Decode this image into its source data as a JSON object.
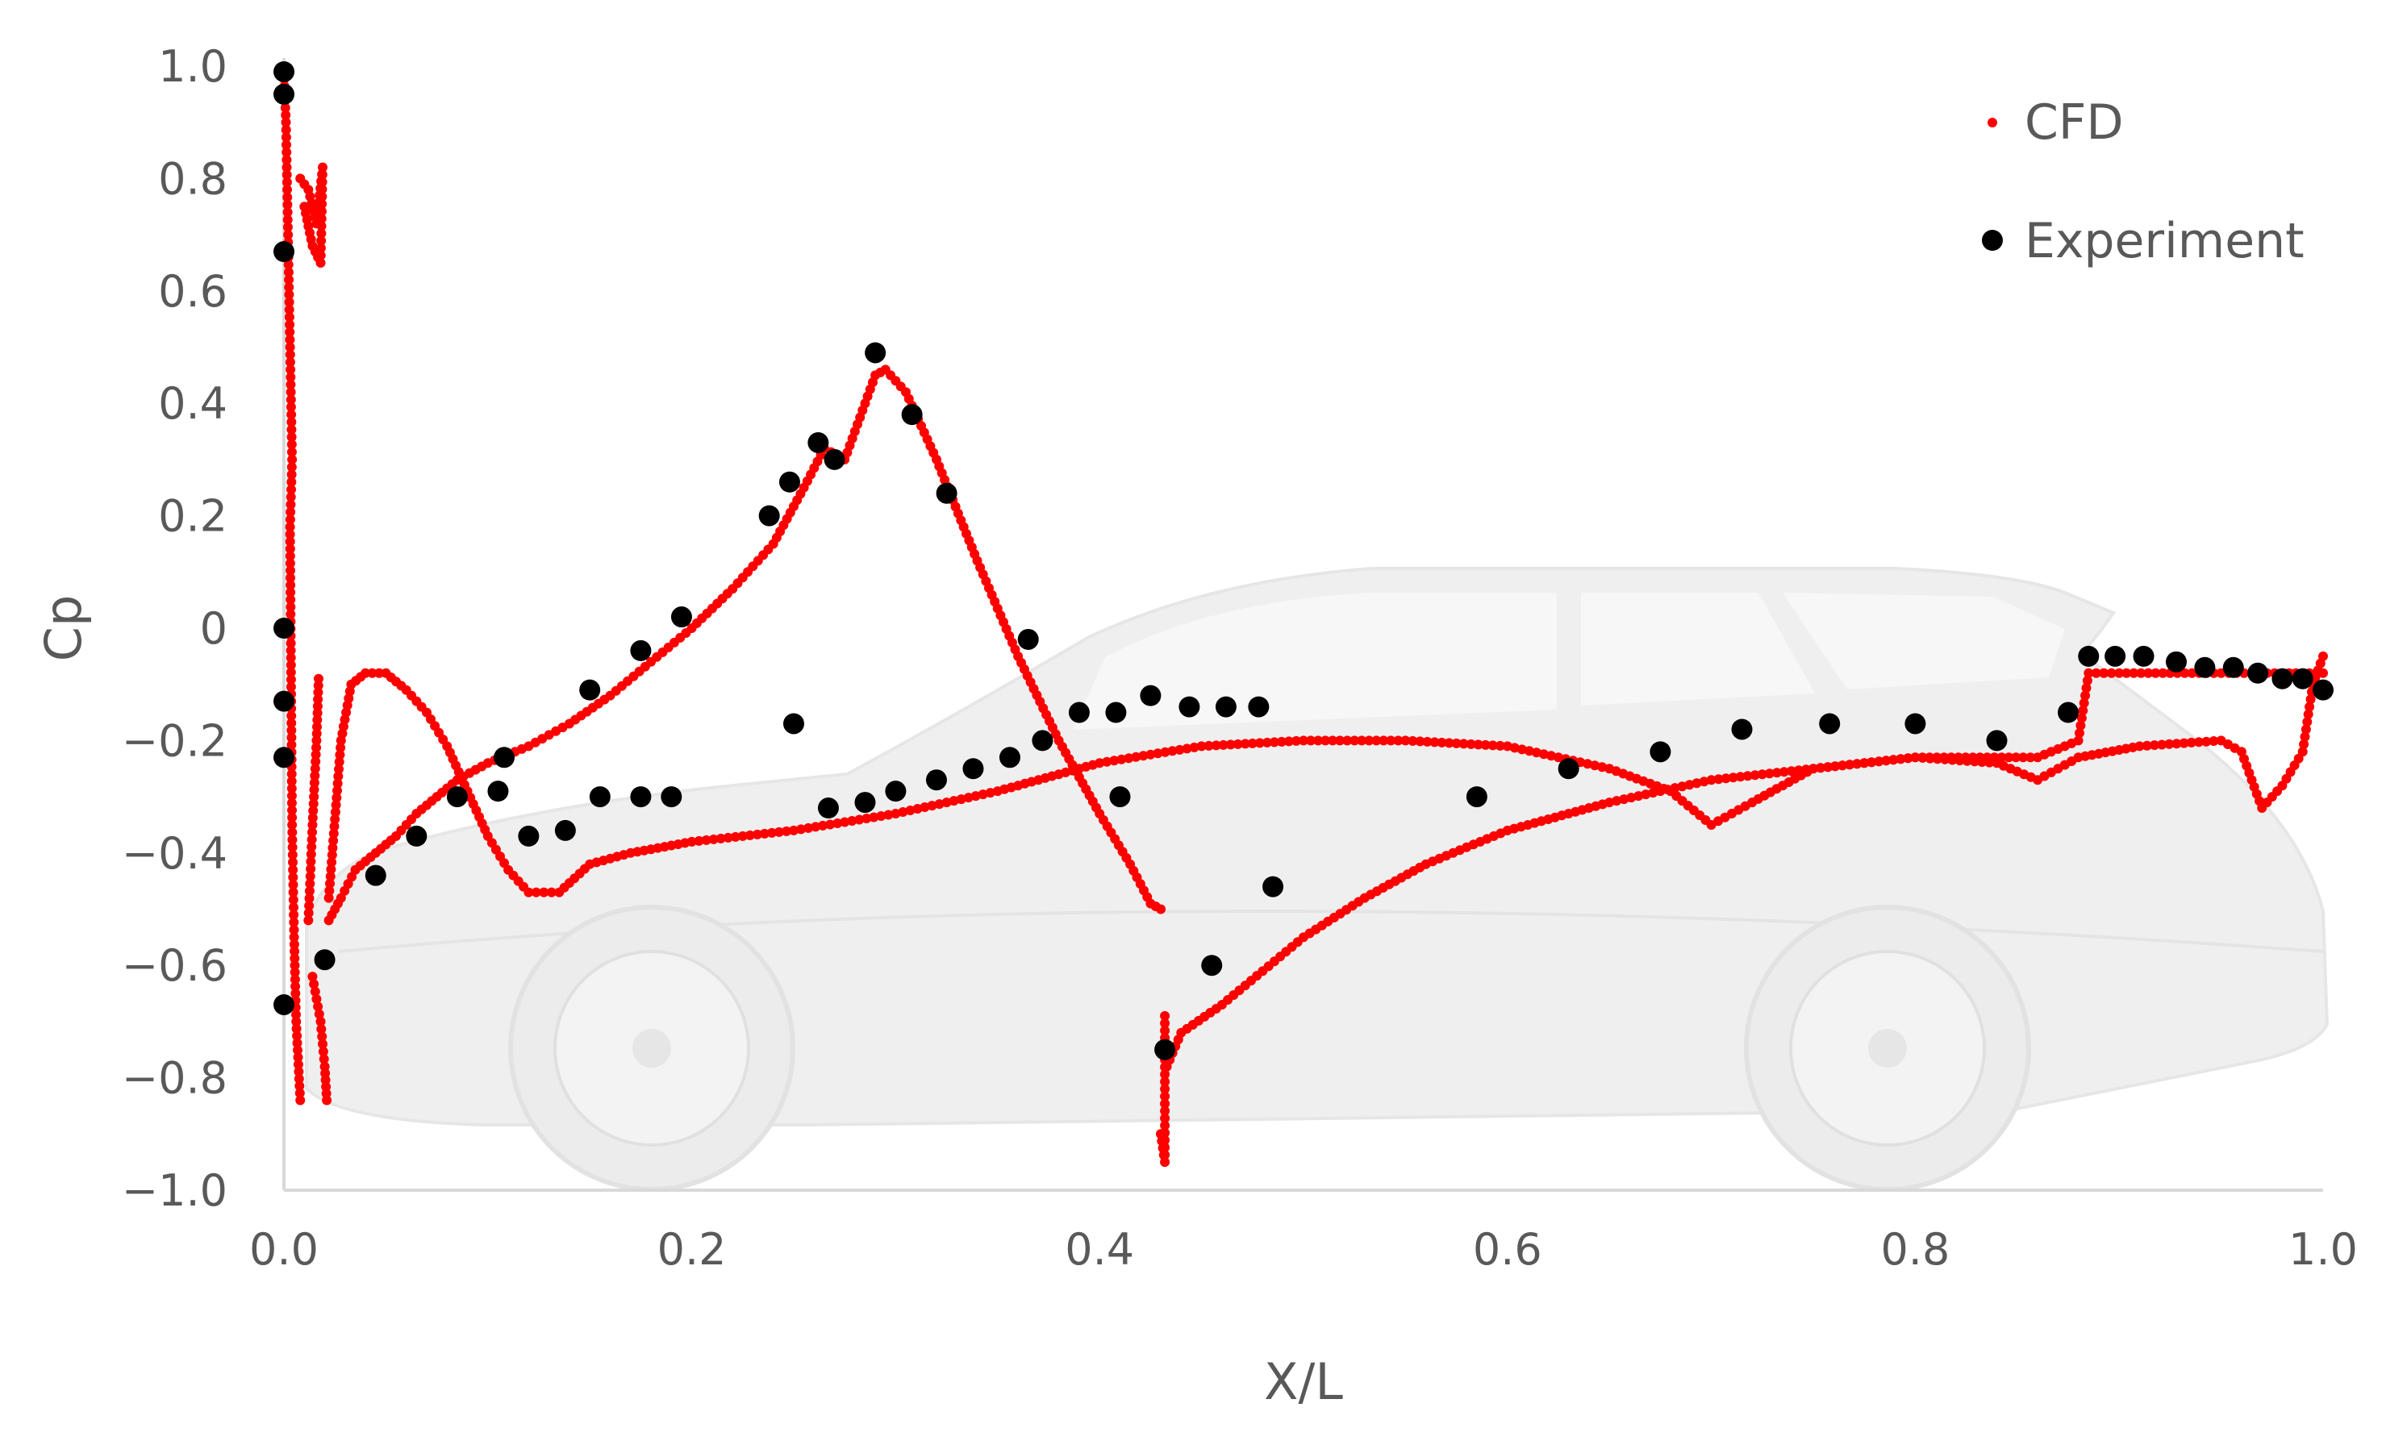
{
  "chart_data": {
    "type": "scatter",
    "xlabel": "X/L",
    "ylabel": "Cp",
    "xlim": [
      0.0,
      1.0
    ],
    "ylim": [
      -1.0,
      1.0
    ],
    "grid": false,
    "legend_position": "top-right",
    "x_ticks": [
      "0.0",
      "0.2",
      "0.4",
      "0.6",
      "0.8",
      "1.0"
    ],
    "y_ticks": [
      "1.0",
      "0.8",
      "0.6",
      "0.4",
      "0.2",
      "0",
      "−0.2",
      "−0.4",
      "−0.6",
      "−0.8",
      "−1.0"
    ],
    "series": [
      {
        "name": "CFD",
        "color": "#ff0000",
        "marker": "small-dot",
        "segments": [
          [
            [
              0.0,
              0.99
            ],
            [
              0.001,
              0.9
            ],
            [
              0.002,
              0.7
            ],
            [
              0.003,
              0.5
            ],
            [
              0.004,
              0.3
            ],
            [
              0.003,
              0.18
            ],
            [
              0.004,
              -0.35
            ],
            [
              0.005,
              -0.55
            ],
            [
              0.006,
              -0.7
            ],
            [
              0.008,
              -0.84
            ]
          ],
          [
            [
              0.008,
              0.8
            ],
            [
              0.012,
              0.78
            ],
            [
              0.016,
              0.72
            ],
            [
              0.019,
              0.82
            ],
            [
              0.018,
              0.65
            ],
            [
              0.014,
              0.68
            ],
            [
              0.01,
              0.75
            ]
          ],
          [
            [
              0.012,
              -0.52
            ],
            [
              0.014,
              -0.35
            ],
            [
              0.016,
              -0.2
            ],
            [
              0.017,
              -0.09
            ]
          ],
          [
            [
              0.014,
              -0.62
            ],
            [
              0.018,
              -0.7
            ],
            [
              0.02,
              -0.78
            ],
            [
              0.021,
              -0.84
            ]
          ],
          [
            [
              0.022,
              -0.52
            ],
            [
              0.028,
              -0.48
            ],
            [
              0.035,
              -0.43
            ],
            [
              0.045,
              -0.4
            ],
            [
              0.055,
              -0.37
            ],
            [
              0.065,
              -0.33
            ],
            [
              0.075,
              -0.3
            ],
            [
              0.085,
              -0.27
            ],
            [
              0.1,
              -0.24
            ],
            [
              0.12,
              -0.21
            ],
            [
              0.14,
              -0.17
            ],
            [
              0.16,
              -0.12
            ],
            [
              0.18,
              -0.06
            ],
            [
              0.2,
              0.0
            ],
            [
              0.22,
              0.07
            ],
            [
              0.24,
              0.15
            ],
            [
              0.255,
              0.25
            ],
            [
              0.265,
              0.32
            ],
            [
              0.275,
              0.3
            ],
            [
              0.28,
              0.35
            ],
            [
              0.29,
              0.45
            ],
            [
              0.295,
              0.46
            ],
            [
              0.305,
              0.42
            ],
            [
              0.32,
              0.3
            ],
            [
              0.34,
              0.12
            ],
            [
              0.36,
              -0.05
            ],
            [
              0.38,
              -0.2
            ],
            [
              0.4,
              -0.33
            ],
            [
              0.415,
              -0.42
            ],
            [
              0.425,
              -0.49
            ],
            [
              0.43,
              -0.5
            ]
          ],
          [
            [
              0.022,
              -0.48
            ],
            [
              0.028,
              -0.2
            ],
            [
              0.033,
              -0.1
            ],
            [
              0.04,
              -0.08
            ],
            [
              0.05,
              -0.08
            ],
            [
              0.06,
              -0.11
            ],
            [
              0.07,
              -0.15
            ],
            [
              0.08,
              -0.21
            ],
            [
              0.09,
              -0.29
            ],
            [
              0.1,
              -0.37
            ],
            [
              0.11,
              -0.43
            ],
            [
              0.12,
              -0.47
            ],
            [
              0.135,
              -0.47
            ],
            [
              0.15,
              -0.42
            ],
            [
              0.17,
              -0.4
            ],
            [
              0.2,
              -0.38
            ],
            [
              0.25,
              -0.36
            ],
            [
              0.3,
              -0.33
            ],
            [
              0.35,
              -0.29
            ],
            [
              0.4,
              -0.24
            ],
            [
              0.45,
              -0.21
            ],
            [
              0.5,
              -0.2
            ],
            [
              0.55,
              -0.2
            ],
            [
              0.6,
              -0.21
            ],
            [
              0.65,
              -0.25
            ],
            [
              0.68,
              -0.29
            ],
            [
              0.7,
              -0.35
            ],
            [
              0.72,
              -0.31
            ],
            [
              0.75,
              -0.25
            ],
            [
              0.8,
              -0.23
            ],
            [
              0.84,
              -0.24
            ],
            [
              0.86,
              -0.27
            ],
            [
              0.88,
              -0.23
            ],
            [
              0.91,
              -0.21
            ],
            [
              0.95,
              -0.2
            ],
            [
              0.96,
              -0.22
            ],
            [
              0.97,
              -0.32
            ],
            [
              0.98,
              -0.28
            ],
            [
              0.99,
              -0.22
            ],
            [
              0.995,
              -0.1
            ],
            [
              1.0,
              -0.05
            ]
          ],
          [
            [
              0.43,
              -0.9
            ],
            [
              0.432,
              -0.95
            ],
            [
              0.432,
              -0.69
            ]
          ],
          [
            [
              0.433,
              -0.78
            ],
            [
              0.44,
              -0.72
            ],
            [
              0.46,
              -0.67
            ],
            [
              0.48,
              -0.61
            ],
            [
              0.5,
              -0.55
            ],
            [
              0.53,
              -0.48
            ],
            [
              0.56,
              -0.42
            ],
            [
              0.6,
              -0.36
            ],
            [
              0.65,
              -0.31
            ],
            [
              0.7,
              -0.27
            ],
            [
              0.75,
              -0.25
            ],
            [
              0.8,
              -0.23
            ],
            [
              0.86,
              -0.23
            ],
            [
              0.88,
              -0.2
            ],
            [
              0.885,
              -0.08
            ],
            [
              0.9,
              -0.08
            ],
            [
              0.95,
              -0.08
            ],
            [
              0.98,
              -0.08
            ],
            [
              1.0,
              -0.08
            ]
          ]
        ]
      },
      {
        "name": "Experiment",
        "color": "#000000",
        "marker": "circle",
        "points": [
          [
            0.0,
            0.99
          ],
          [
            0.0,
            0.95
          ],
          [
            0.0,
            0.67
          ],
          [
            0.0,
            0.0
          ],
          [
            0.0,
            -0.13
          ],
          [
            0.0,
            -0.23
          ],
          [
            0.0,
            -0.67
          ],
          [
            0.02,
            -0.59
          ],
          [
            0.045,
            -0.44
          ],
          [
            0.065,
            -0.37
          ],
          [
            0.085,
            -0.3
          ],
          [
            0.105,
            -0.29
          ],
          [
            0.12,
            -0.37
          ],
          [
            0.138,
            -0.36
          ],
          [
            0.155,
            -0.3
          ],
          [
            0.175,
            -0.3
          ],
          [
            0.19,
            -0.3
          ],
          [
            0.108,
            -0.23
          ],
          [
            0.15,
            -0.11
          ],
          [
            0.175,
            -0.04
          ],
          [
            0.195,
            0.02
          ],
          [
            0.238,
            0.2
          ],
          [
            0.248,
            0.26
          ],
          [
            0.262,
            0.33
          ],
          [
            0.27,
            0.3
          ],
          [
            0.29,
            0.49
          ],
          [
            0.308,
            0.38
          ],
          [
            0.325,
            0.24
          ],
          [
            0.365,
            -0.02
          ],
          [
            0.25,
            -0.17
          ],
          [
            0.267,
            -0.32
          ],
          [
            0.285,
            -0.31
          ],
          [
            0.3,
            -0.29
          ],
          [
            0.32,
            -0.27
          ],
          [
            0.338,
            -0.25
          ],
          [
            0.356,
            -0.23
          ],
          [
            0.372,
            -0.2
          ],
          [
            0.39,
            -0.15
          ],
          [
            0.408,
            -0.15
          ],
          [
            0.425,
            -0.12
          ],
          [
            0.444,
            -0.14
          ],
          [
            0.462,
            -0.14
          ],
          [
            0.478,
            -0.14
          ],
          [
            0.41,
            -0.3
          ],
          [
            0.432,
            -0.75
          ],
          [
            0.455,
            -0.6
          ],
          [
            0.485,
            -0.46
          ],
          [
            0.585,
            -0.3
          ],
          [
            0.63,
            -0.25
          ],
          [
            0.675,
            -0.22
          ],
          [
            0.715,
            -0.18
          ],
          [
            0.758,
            -0.17
          ],
          [
            0.8,
            -0.17
          ],
          [
            0.84,
            -0.2
          ],
          [
            0.875,
            -0.15
          ],
          [
            0.885,
            -0.05
          ],
          [
            0.898,
            -0.05
          ],
          [
            0.912,
            -0.05
          ],
          [
            0.928,
            -0.06
          ],
          [
            0.942,
            -0.07
          ],
          [
            0.956,
            -0.07
          ],
          [
            0.968,
            -0.08
          ],
          [
            0.98,
            -0.09
          ],
          [
            0.99,
            -0.09
          ],
          [
            1.0,
            -0.11
          ]
        ]
      }
    ]
  }
}
